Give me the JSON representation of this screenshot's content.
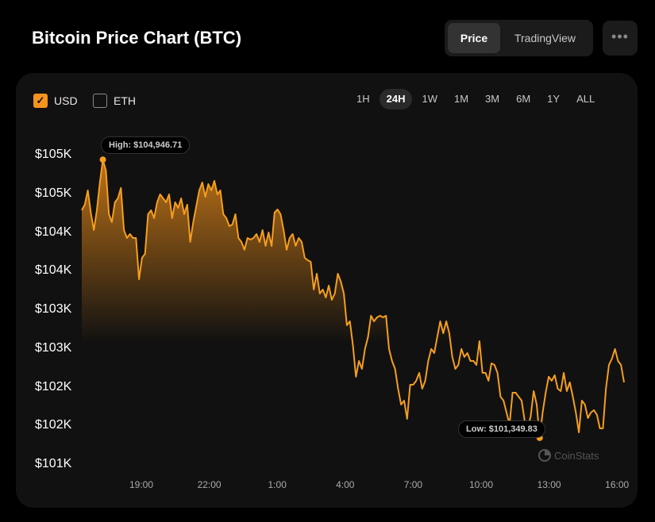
{
  "header": {
    "title": "Bitcoin Price Chart (BTC)",
    "tabs": [
      {
        "label": "Price",
        "active": true
      },
      {
        "label": "TradingView",
        "active": false
      }
    ],
    "more_icon": "ellipsis-icon"
  },
  "currency": {
    "usd": {
      "label": "USD",
      "checked": true
    },
    "eth": {
      "label": "ETH",
      "checked": false
    }
  },
  "ranges": [
    {
      "label": "1H"
    },
    {
      "label": "24H",
      "selected": true
    },
    {
      "label": "1W"
    },
    {
      "label": "1M"
    },
    {
      "label": "3M"
    },
    {
      "label": "6M"
    },
    {
      "label": "1Y"
    },
    {
      "label": "ALL"
    }
  ],
  "watermark": "CoinStats",
  "colors": {
    "accent": "#f7931a",
    "line": "#f59e1f"
  },
  "chart_data": {
    "type": "area",
    "title": "Bitcoin Price Chart (BTC)",
    "ylim": [
      101000,
      105000
    ],
    "y_ticks": [
      {
        "v": 105000,
        "label": "$105K"
      },
      {
        "v": 104500,
        "label": "$105K"
      },
      {
        "v": 104000,
        "label": "$104K"
      },
      {
        "v": 103500,
        "label": "$104K"
      },
      {
        "v": 103000,
        "label": "$103K"
      },
      {
        "v": 102500,
        "label": "$103K"
      },
      {
        "v": 102000,
        "label": "$102K"
      },
      {
        "v": 101500,
        "label": "$102K"
      },
      {
        "v": 101000,
        "label": "$101K"
      }
    ],
    "x_ticks": [
      "19:00",
      "22:00",
      "1:00",
      "4:00",
      "7:00",
      "10:00",
      "13:00",
      "16:00"
    ],
    "high": {
      "label": "High: $104,946.71",
      "value": 104946.71,
      "index": 7
    },
    "low": {
      "label": "Low: $101,349.83",
      "value": 101349.83,
      "index": 152
    },
    "values": [
      104292,
      104364,
      104549,
      104262,
      104036,
      104292,
      104651,
      104947,
      104805,
      104241,
      104138,
      104395,
      104446,
      104580,
      104036,
      103933,
      103985,
      103933,
      103933,
      103400,
      103677,
      103728,
      104241,
      104292,
      104190,
      104395,
      104497,
      104446,
      104395,
      104497,
      104190,
      104395,
      104323,
      104446,
      104241,
      104364,
      103882,
      104138,
      104344,
      104549,
      104651,
      104467,
      104631,
      104549,
      104672,
      104497,
      104549,
      104241,
      104190,
      104087,
      104108,
      104241,
      103933,
      103882,
      103780,
      103933,
      103913,
      103933,
      103985,
      103882,
      104036,
      103831,
      104005,
      103831,
      104262,
      104303,
      104241,
      104036,
      103780,
      103933,
      103985,
      103831,
      103933,
      103882,
      103677,
      103646,
      103626,
      103267,
      103472,
      103215,
      103267,
      103164,
      103318,
      103133,
      103215,
      103472,
      103369,
      103215,
      102805,
      102856,
      102549,
      102139,
      102344,
      102241,
      102498,
      102651,
      102928,
      102856,
      102908,
      102928,
      102908,
      102928,
      102498,
      102344,
      102241,
      101985,
      101780,
      101831,
      101595,
      102036,
      102036,
      102087,
      102190,
      101985,
      102087,
      102344,
      102498,
      102446,
      102651,
      102856,
      102703,
      102856,
      102703,
      102395,
      102241,
      102292,
      102498,
      102395,
      102446,
      102344,
      102344,
      102292,
      102600,
      102190,
      102190,
      102087,
      102313,
      102292,
      102190,
      101882,
      101831,
      101677,
      101523,
      101933,
      101933,
      101882,
      101831,
      101574,
      101472,
      101626,
      101954,
      101780,
      101350,
      101677,
      101933,
      102139,
      102087,
      102159,
      101985,
      101954,
      102190,
      101954,
      102067,
      101882,
      101677,
      101421,
      101831,
      101780,
      101605,
      101677,
      101708,
      101646,
      101472,
      101472,
      101985,
      102292,
      102374,
      102498,
      102344,
      102292,
      102067
    ]
  }
}
